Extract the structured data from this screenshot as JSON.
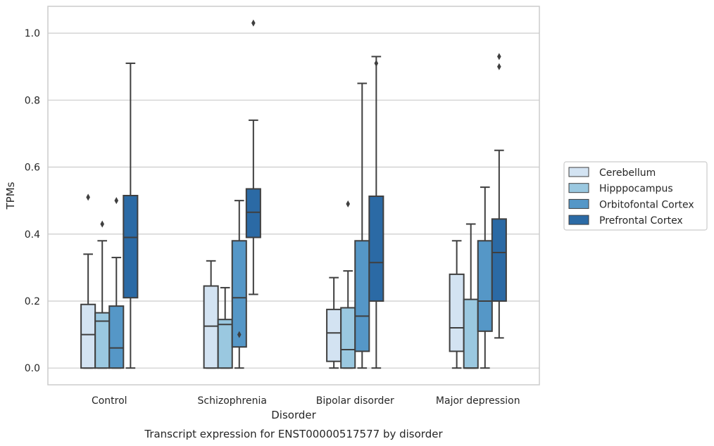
{
  "chart_data": {
    "type": "boxplot",
    "title": "",
    "caption": "Transcript expression for ENST00000517577 by disorder",
    "xlabel": "Disorder",
    "ylabel": "TPMs",
    "ylim": [
      -0.05,
      1.08
    ],
    "yticks": [
      "0.0",
      "0.2",
      "0.4",
      "0.6",
      "0.8",
      "1.0"
    ],
    "grid": "horizontal",
    "legend_position": "right",
    "categories": [
      "Control",
      "Schizophrenia",
      "Bipolar disorder",
      "Major depression"
    ],
    "series": [
      {
        "name": "Cerebellum",
        "color": "#d3e3f2",
        "boxes": [
          {
            "whislo": 0.0,
            "q1": 0.0,
            "med": 0.1,
            "q3": 0.19,
            "whishi": 0.34,
            "fliers": [
              0.51
            ]
          },
          {
            "whislo": 0.0,
            "q1": 0.0,
            "med": 0.125,
            "q3": 0.245,
            "whishi": 0.32,
            "fliers": []
          },
          {
            "whislo": 0.0,
            "q1": 0.02,
            "med": 0.105,
            "q3": 0.175,
            "whishi": 0.27,
            "fliers": []
          },
          {
            "whislo": 0.0,
            "q1": 0.05,
            "med": 0.12,
            "q3": 0.28,
            "whishi": 0.38,
            "fliers": []
          }
        ]
      },
      {
        "name": "Hipppocampus",
        "color": "#9ac8e0",
        "boxes": [
          {
            "whislo": 0.0,
            "q1": 0.0,
            "med": 0.14,
            "q3": 0.165,
            "whishi": 0.38,
            "fliers": [
              0.43
            ]
          },
          {
            "whislo": 0.0,
            "q1": 0.0,
            "med": 0.13,
            "q3": 0.145,
            "whishi": 0.24,
            "fliers": []
          },
          {
            "whislo": 0.0,
            "q1": 0.0,
            "med": 0.055,
            "q3": 0.18,
            "whishi": 0.29,
            "fliers": [
              0.49
            ]
          },
          {
            "whislo": 0.0,
            "q1": 0.0,
            "med": 0.0,
            "q3": 0.205,
            "whishi": 0.43,
            "fliers": []
          }
        ]
      },
      {
        "name": "Orbitofontal Cortex",
        "color": "#5597c7",
        "boxes": [
          {
            "whislo": 0.0,
            "q1": 0.0,
            "med": 0.06,
            "q3": 0.185,
            "whishi": 0.33,
            "fliers": [
              0.5
            ]
          },
          {
            "whislo": 0.0,
            "q1": 0.063,
            "med": 0.21,
            "q3": 0.38,
            "whishi": 0.5,
            "fliers": [
              0.1
            ]
          },
          {
            "whislo": 0.0,
            "q1": 0.05,
            "med": 0.155,
            "q3": 0.38,
            "whishi": 0.85,
            "fliers": []
          },
          {
            "whislo": 0.0,
            "q1": 0.11,
            "med": 0.2,
            "q3": 0.38,
            "whishi": 0.54,
            "fliers": []
          }
        ]
      },
      {
        "name": "Prefrontal Cortex",
        "color": "#2b6aa5",
        "boxes": [
          {
            "whislo": 0.0,
            "q1": 0.21,
            "med": 0.39,
            "q3": 0.515,
            "whishi": 0.91,
            "fliers": []
          },
          {
            "whislo": 0.22,
            "q1": 0.39,
            "med": 0.465,
            "q3": 0.535,
            "whishi": 0.74,
            "fliers": [
              1.03
            ]
          },
          {
            "whislo": 0.0,
            "q1": 0.2,
            "med": 0.315,
            "q3": 0.513,
            "whishi": 0.93,
            "fliers": [
              0.91
            ]
          },
          {
            "whislo": 0.09,
            "q1": 0.2,
            "med": 0.345,
            "q3": 0.445,
            "whishi": 0.65,
            "fliers": [
              0.93,
              0.9
            ]
          }
        ]
      }
    ]
  }
}
